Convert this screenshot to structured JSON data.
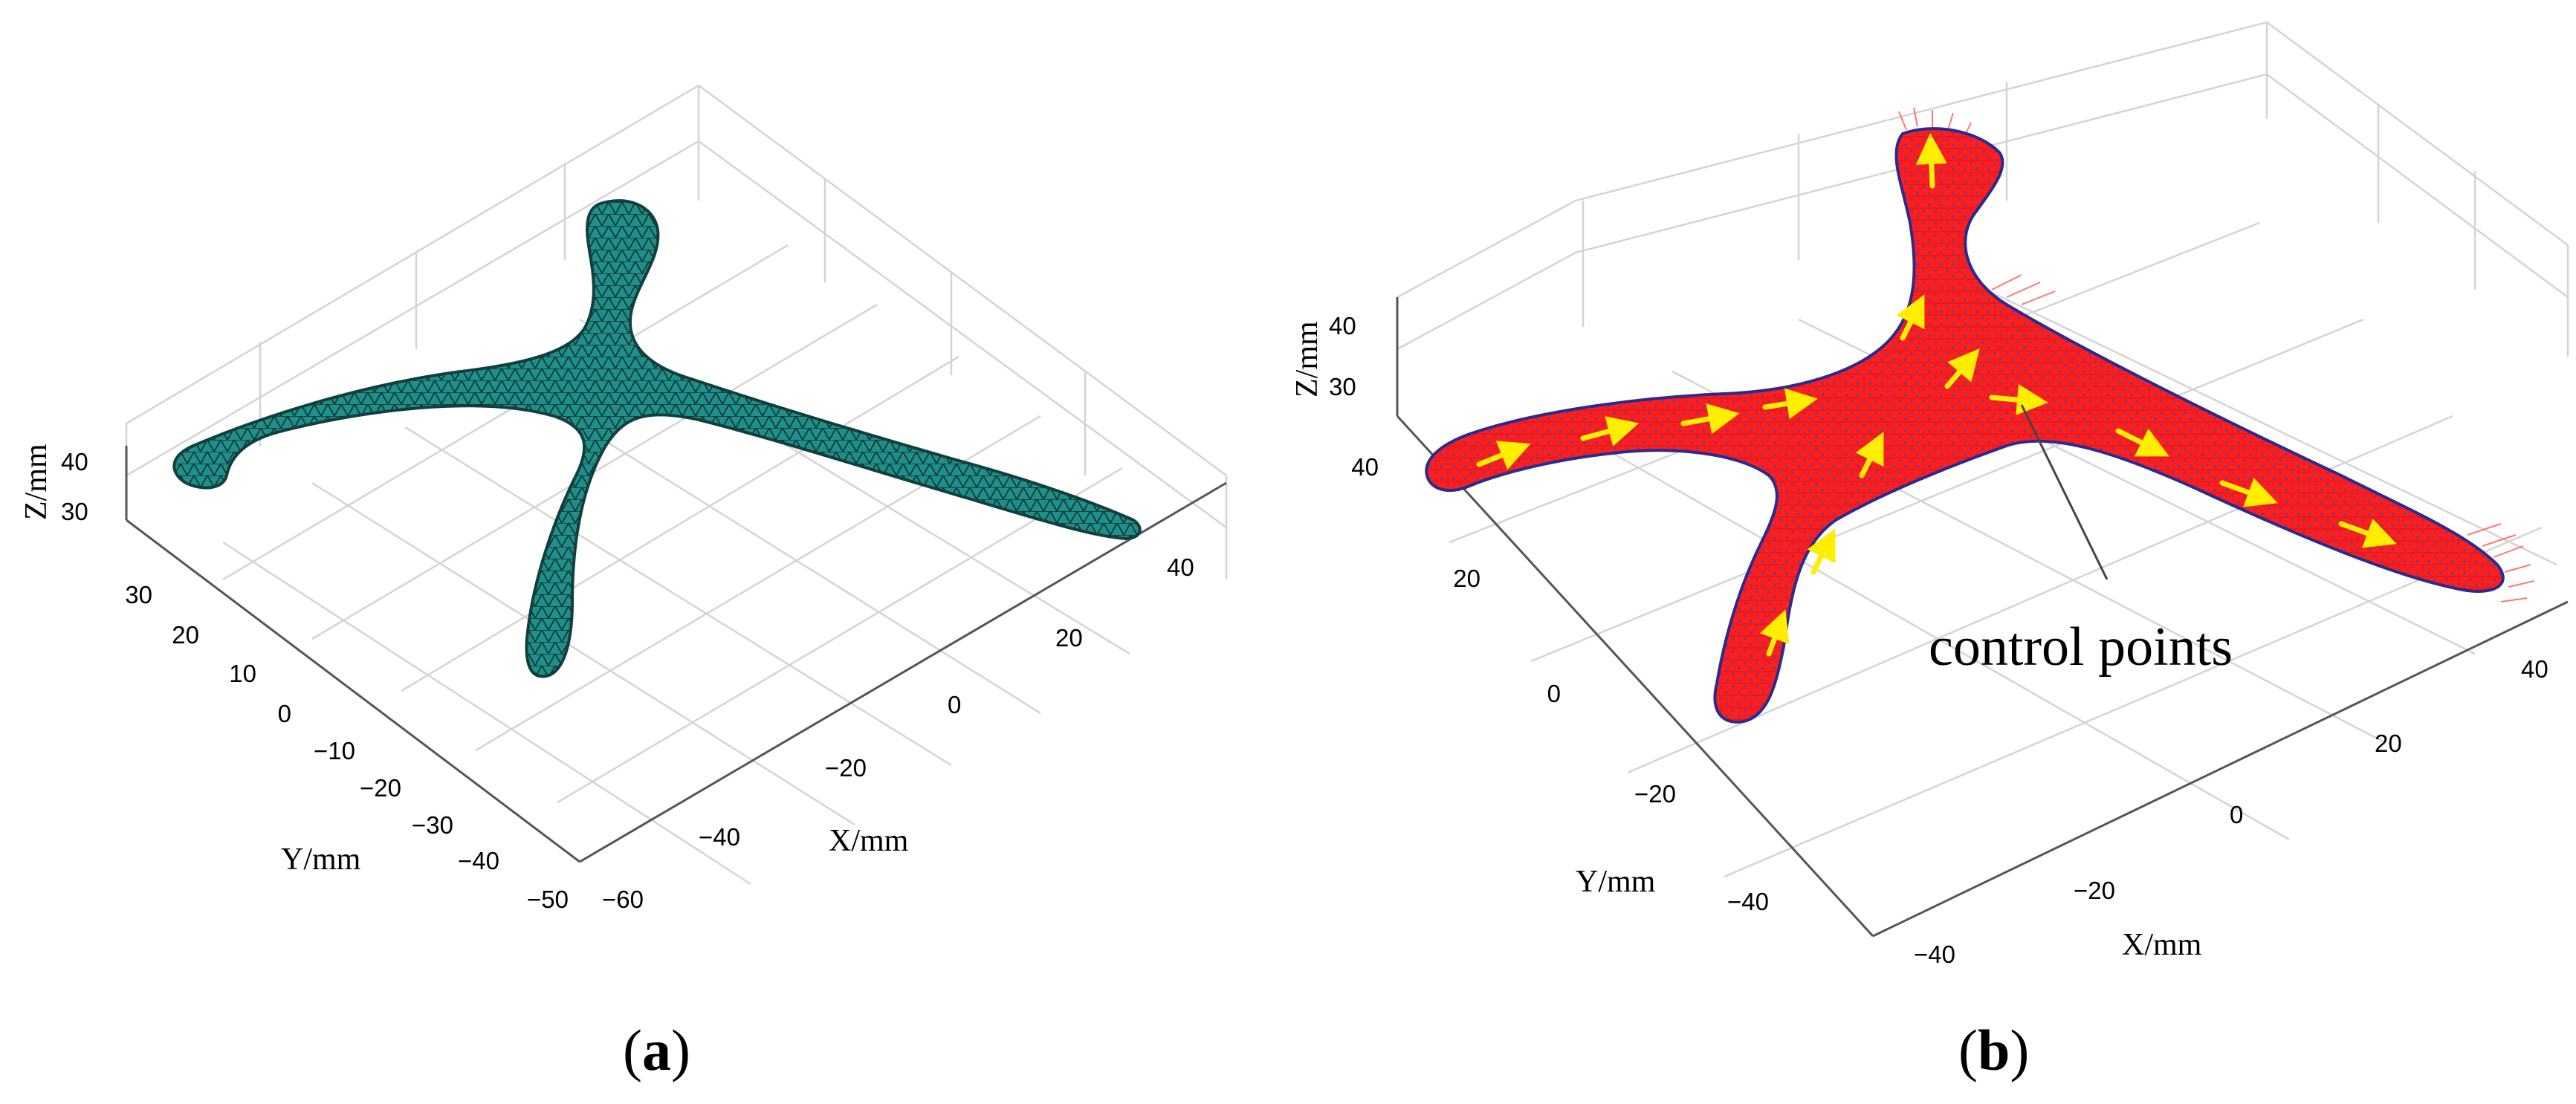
{
  "panels": [
    {
      "id": "a",
      "caption_open": "(",
      "caption_letter": "a",
      "caption_close": ")",
      "mesh_color": "#1f8f8a",
      "axes": {
        "x_label": "X/mm",
        "y_label": "Y/mm",
        "z_label": "Z/mm",
        "x_ticks": [
          "−60",
          "−40",
          "−20",
          "0",
          "20",
          "40"
        ],
        "y_ticks": [
          "30",
          "20",
          "10",
          "0",
          "−10",
          "−20",
          "−30",
          "−40",
          "−50"
        ],
        "z_ticks": [
          "40",
          "30"
        ]
      }
    },
    {
      "id": "b",
      "caption_open": "(",
      "caption_letter": "b",
      "caption_close": ")",
      "mesh_color": "#ff2a2a",
      "arrow_color": "#ffee00",
      "annotation": "control points",
      "axes": {
        "x_label": "X/mm",
        "y_label": "Y/mm",
        "z_label": "Z/mm",
        "x_ticks": [
          "−40",
          "−20",
          "0",
          "20",
          "40"
        ],
        "y_ticks": [
          "40",
          "20",
          "0",
          "−20",
          "−40"
        ],
        "z_ticks": [
          "40",
          "30"
        ]
      }
    }
  ]
}
